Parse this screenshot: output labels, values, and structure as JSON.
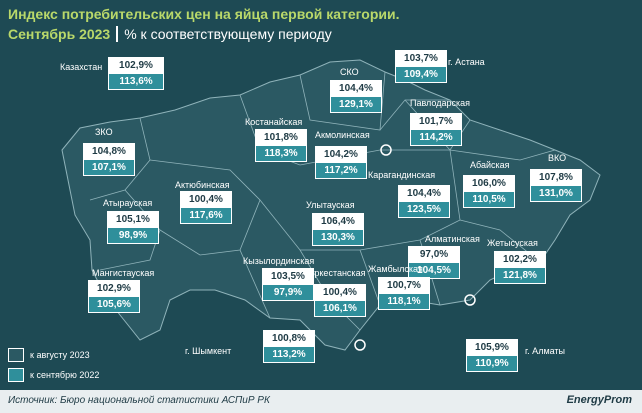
{
  "header": {
    "title": "Индекс потребительских цен на яйца первой категории.",
    "period": "Сентябрь 2023",
    "note": "% к соответствующему периоду"
  },
  "regions": [
    {
      "name": "Казахстан",
      "aug": "102,9%",
      "sep": "113,6%"
    },
    {
      "name": "СКО",
      "aug": "104,4%",
      "sep": "129,1%"
    },
    {
      "name": "г. Астана",
      "aug": "103,7%",
      "sep": "109,4%"
    },
    {
      "name": "Павлодарская",
      "aug": "101,7%",
      "sep": "114,2%"
    },
    {
      "name": "Костанайская",
      "aug": "101,8%",
      "sep": "118,3%"
    },
    {
      "name": "Акмолинская",
      "aug": "104,2%",
      "sep": "117,2%"
    },
    {
      "name": "ЗКО",
      "aug": "104,8%",
      "sep": "107,1%"
    },
    {
      "name": "Абайская",
      "aug": "106,0%",
      "sep": "110,5%"
    },
    {
      "name": "ВКО",
      "aug": "107,8%",
      "sep": "131,0%"
    },
    {
      "name": "Актюбинская",
      "aug": "100,4%",
      "sep": "117,6%"
    },
    {
      "name": "Карагандинская",
      "aug": "104,4%",
      "sep": "123,5%"
    },
    {
      "name": "Атырауская",
      "aug": "105,1%",
      "sep": "98,9%"
    },
    {
      "name": "Улытауская",
      "aug": "106,4%",
      "sep": "130,3%"
    },
    {
      "name": "Алматинская",
      "aug": "97,0%",
      "sep": "104,5%"
    },
    {
      "name": "Жетысуская",
      "aug": "102,2%",
      "sep": "121,8%"
    },
    {
      "name": "Мангистауская",
      "aug": "102,9%",
      "sep": "105,6%"
    },
    {
      "name": "Кызылординская",
      "aug": "103,5%",
      "sep": "97,9%"
    },
    {
      "name": "Туркестанская",
      "aug": "100,4%",
      "sep": "106,1%"
    },
    {
      "name": "Жамбылская",
      "aug": "100,7%",
      "sep": "118,1%"
    },
    {
      "name": "г. Шымкент",
      "aug": "100,8%",
      "sep": "113,2%"
    },
    {
      "name": "г. Алматы",
      "aug": "105,9%",
      "sep": "110,9%"
    }
  ],
  "legend": [
    "к августу 2023",
    "к сентябрю 2022"
  ],
  "footer": {
    "source": "Источник: Бюро национальной статистики АСПиР РК",
    "logo": "EnergyProm"
  }
}
